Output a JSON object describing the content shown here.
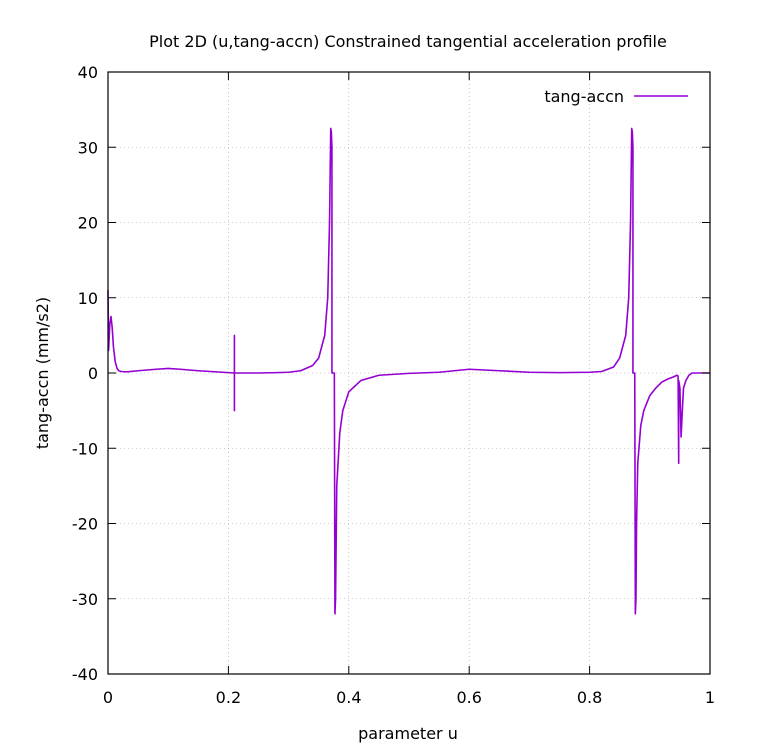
{
  "chart_data": {
    "type": "line",
    "title": "Plot 2D (u,tang-accn) Constrained tangential acceleration profile",
    "xlabel": "parameter u",
    "ylabel": "tang-accn (mm/s2)",
    "xlim": [
      0,
      1
    ],
    "ylim": [
      -40,
      40
    ],
    "x_ticks": [
      0,
      0.2,
      0.4,
      0.6,
      0.8,
      1
    ],
    "x_tick_labels": [
      "0",
      "0.2",
      "0.4",
      "0.6",
      "0.8",
      "1"
    ],
    "y_ticks": [
      -40,
      -30,
      -20,
      -10,
      0,
      10,
      20,
      30,
      40
    ],
    "y_tick_labels": [
      "-40",
      "-30",
      "-20",
      "-10",
      "0",
      "10",
      "20",
      "30",
      "40"
    ],
    "grid": true,
    "legend_position": "top-right",
    "series": [
      {
        "name": "tang-accn",
        "color": "#9400d3",
        "x": [
          0,
          0.001,
          0.003,
          0.005,
          0.007,
          0.009,
          0.012,
          0.015,
          0.018,
          0.022,
          0.03,
          0.05,
          0.08,
          0.1,
          0.12,
          0.15,
          0.18,
          0.2,
          0.21,
          0.21,
          0.21,
          0.21,
          0.22,
          0.25,
          0.28,
          0.3,
          0.32,
          0.34,
          0.35,
          0.36,
          0.365,
          0.368,
          0.37,
          0.371,
          0.372,
          0.372,
          0.376,
          0.377,
          0.378,
          0.38,
          0.385,
          0.39,
          0.4,
          0.42,
          0.45,
          0.5,
          0.55,
          0.6,
          0.65,
          0.7,
          0.75,
          0.8,
          0.82,
          0.84,
          0.85,
          0.86,
          0.865,
          0.868,
          0.87,
          0.871,
          0.872,
          0.872,
          0.875,
          0.876,
          0.877,
          0.878,
          0.88,
          0.885,
          0.89,
          0.9,
          0.91,
          0.92,
          0.93,
          0.94,
          0.945,
          0.947,
          0.948,
          0.948,
          0.95,
          0.952,
          0.954,
          0.956,
          0.96,
          0.965,
          0.97,
          0.98,
          0.99,
          1
        ],
        "y": [
          11,
          3,
          6.5,
          7.5,
          6,
          3.5,
          1.5,
          0.6,
          0.3,
          0.2,
          0.15,
          0.3,
          0.5,
          0.6,
          0.5,
          0.3,
          0.15,
          0.05,
          0,
          5,
          -5,
          0,
          0,
          0,
          0.05,
          0.1,
          0.3,
          1,
          2,
          5,
          10,
          20,
          32.5,
          32,
          30,
          0,
          0,
          -32,
          -30,
          -15,
          -8,
          -5,
          -2.5,
          -1,
          -0.3,
          -0.05,
          0.1,
          0.5,
          0.3,
          0.1,
          0.05,
          0.1,
          0.2,
          0.8,
          2,
          5,
          10,
          20,
          32.5,
          32,
          30,
          0,
          0,
          -32,
          -30,
          -20,
          -12,
          -7,
          -5,
          -3,
          -2,
          -1.2,
          -0.8,
          -0.5,
          -0.3,
          -0.4,
          -12,
          -1,
          -2,
          -8.5,
          -5,
          -2,
          -1,
          -0.3,
          0,
          0,
          0,
          0
        ]
      }
    ]
  }
}
